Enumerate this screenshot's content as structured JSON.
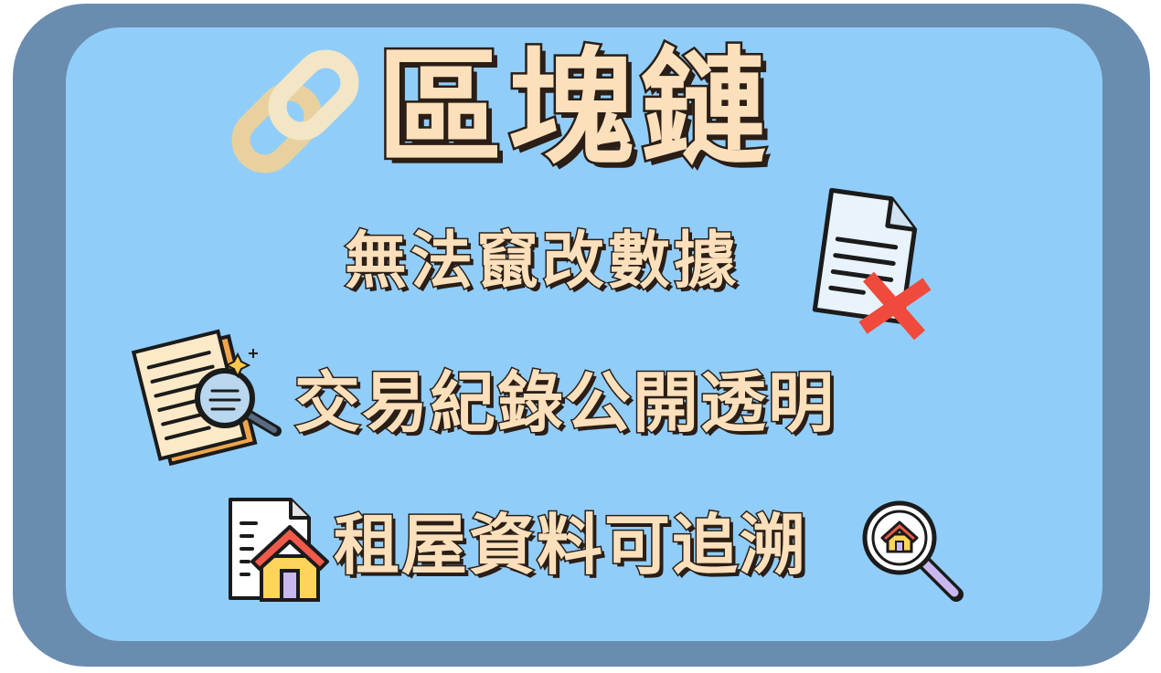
{
  "card": {
    "title": "區塊鏈",
    "points": [
      {
        "text": "無法竄改數據",
        "icon": "document-x-icon"
      },
      {
        "text": "交易紀錄公開透明",
        "icon": "document-magnifier-icon"
      },
      {
        "text": "租屋資料可追溯",
        "icon": "house-document-icon"
      }
    ],
    "title_icon": "chain-link-icon",
    "extra_icon": "house-search-icon"
  },
  "colors": {
    "frame": "#6a8caf",
    "panel": "#91cdf9",
    "text_fill": "#fbe0bb",
    "text_outline": "#2a1e16"
  }
}
